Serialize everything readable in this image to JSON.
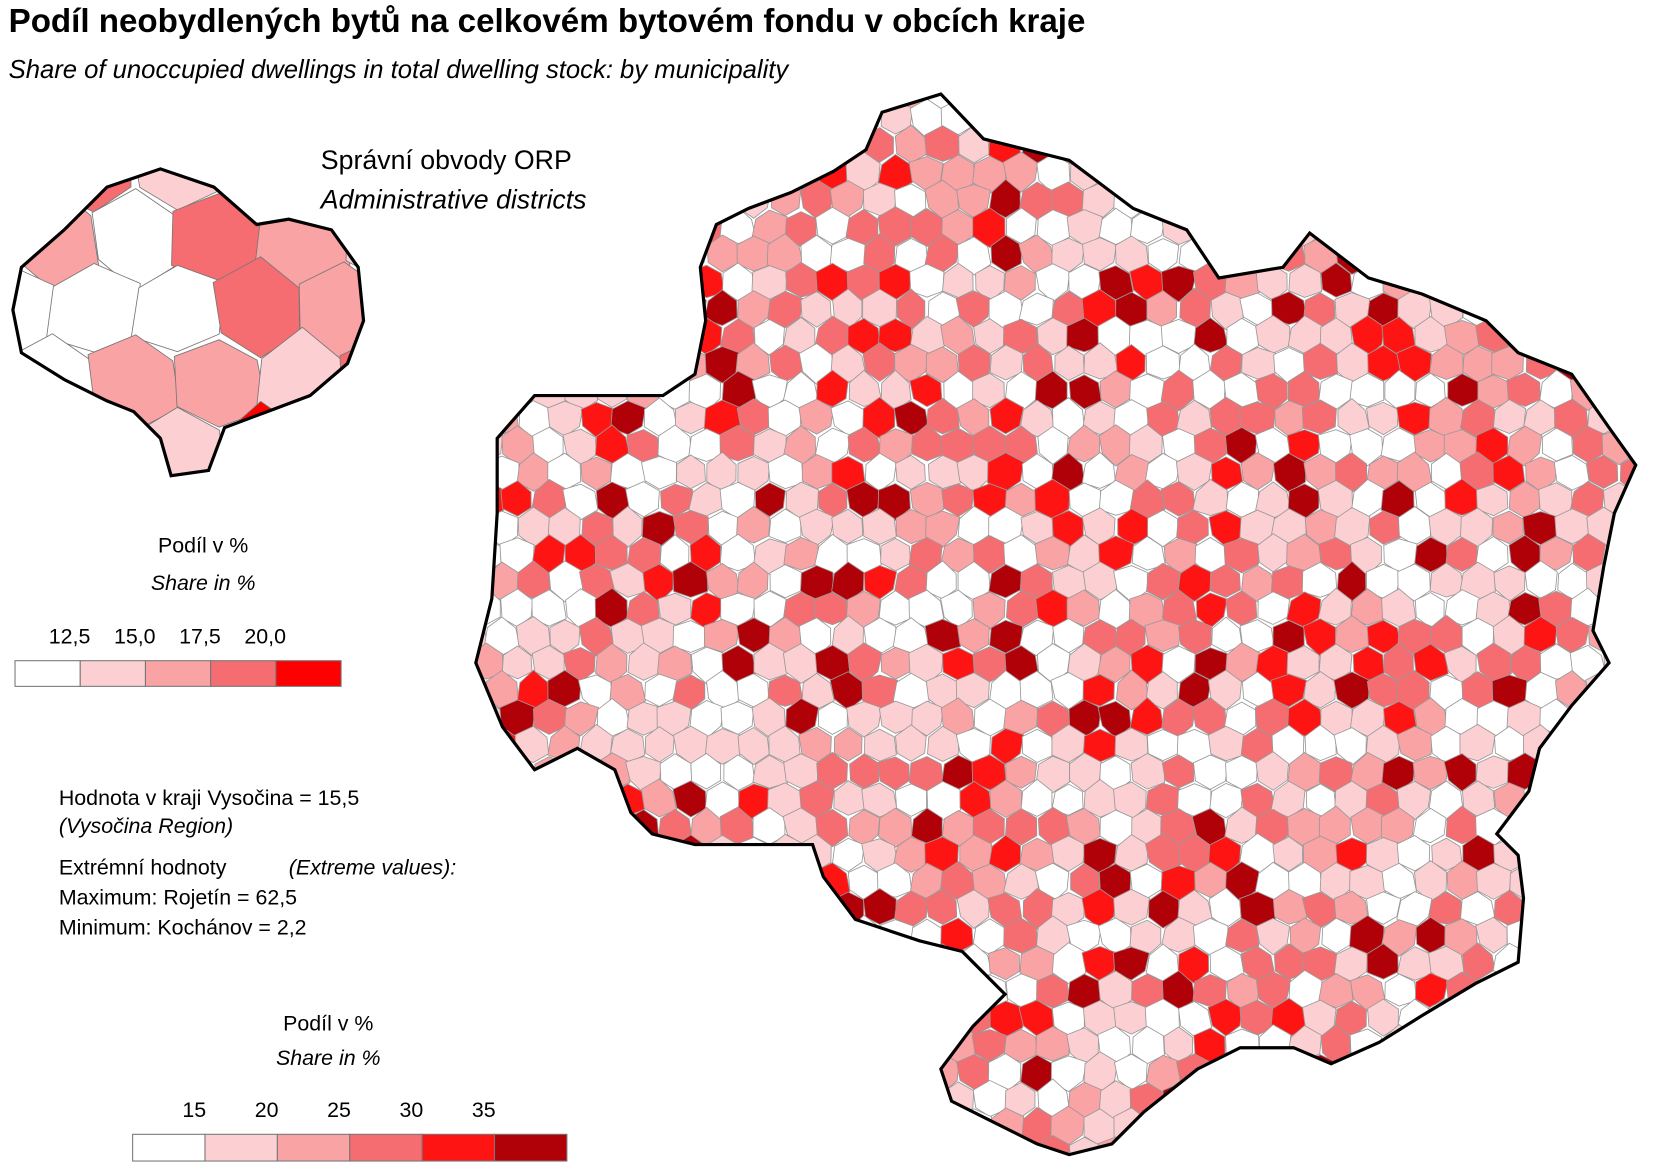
{
  "title": "Podíl neobydlených bytů na celkovém bytovém fondu v obcích kraje",
  "subtitle": "Share of unoccupied dwellings in total dwelling stock: by municipality",
  "inset": {
    "title": "Správní obvody  ORP",
    "subtitle": "Administrative districts",
    "legend": {
      "title": "Podíl v %",
      "subtitle": "Share in %",
      "labels": [
        "12,5",
        "15,0",
        "17,5",
        "20,0"
      ],
      "colors": [
        "#ffffff",
        "#fcd0d2",
        "#f9a3a5",
        "#f56d70",
        "#ff0000"
      ]
    }
  },
  "legend": {
    "title": "Podíl v %",
    "subtitle": "Share in %",
    "labels": [
      "15",
      "20",
      "25",
      "30",
      "35"
    ],
    "colors": [
      "#ffffff",
      "#fcd0d2",
      "#f9a3a5",
      "#f56d70",
      "#ff1414",
      "#b00008"
    ]
  },
  "notes": {
    "region_value": "Hodnota v kraji Vysočina = 15,5",
    "region_en": "(Vysočina Region)",
    "extremes": "Extrémní hodnoty",
    "extremes_en": "(Extreme values):",
    "maximum": "Maximum: Rojetín = 62,5",
    "minimum": "Minimum: Kochánov = 2,2"
  }
}
